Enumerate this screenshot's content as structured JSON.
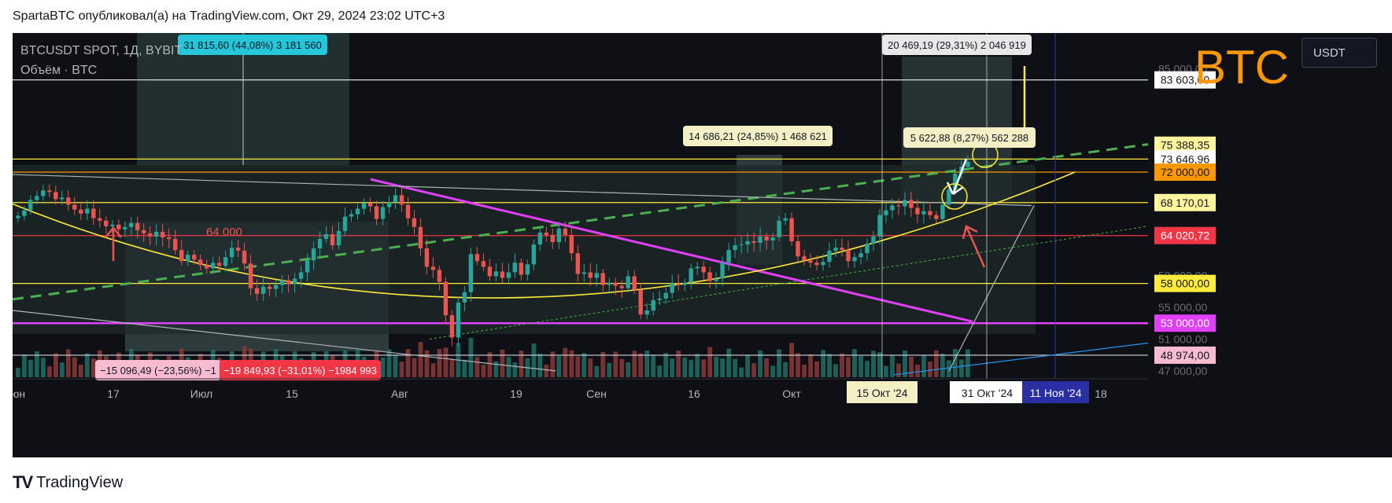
{
  "header": {
    "title": "SpartaBTC опубликовал(а) на TradingView.com, Окт 29, 2024 23:02 UTC+3"
  },
  "legend": {
    "symbol": "BTCUSDT SPOT, 1Д, BYBIT",
    "volume": "Объём · BTC"
  },
  "toolbar": {
    "currency": "USDT"
  },
  "brand": {
    "ticker": "BTC"
  },
  "footer": {
    "logo_text": "TradingView"
  },
  "colors": {
    "bg": "#0f1016",
    "up": "#26a69a",
    "down": "#ef5350",
    "magenta": "#e040fb",
    "green_dashed": "#4caf50",
    "yellow": "#ffeb3b",
    "orange": "#ff9800"
  },
  "chart_data": {
    "type": "candlestick",
    "ylim": [
      46000,
      89500
    ],
    "price_ticks": [
      "85 000,00",
      "59 000,00",
      "55 000,00",
      "51 000,00",
      "47 000,00"
    ],
    "x_ticks": [
      "Июн",
      "17",
      "Июл",
      "15",
      "Авг",
      "19",
      "Сен",
      "16",
      "Окт",
      "18"
    ],
    "x_highlight_labels": [
      {
        "text": "15 Окт '24",
        "bg": "#f4efc4",
        "color": "#131722"
      },
      {
        "text": "31 Окт '24",
        "bg": "#ffffff",
        "color": "#131722"
      },
      {
        "text": "11 Ноя '24",
        "bg": "#2a2fa4",
        "color": "#ffffff"
      }
    ],
    "price_labels": [
      {
        "text": "83 603,00",
        "price": 83603,
        "bg": "#ffffff",
        "color": "#131722"
      },
      {
        "text": "75 388,35",
        "price": 75388.35,
        "bg": "#fff59d",
        "color": "#131722"
      },
      {
        "text": "73 646,96",
        "price": 73646.96,
        "bg": "#ffffff",
        "color": "#131722"
      },
      {
        "text": "72 000,00",
        "price": 72000,
        "bg": "#ff9800",
        "color": "#131722"
      },
      {
        "text": "68 170,01",
        "price": 68170.01,
        "bg": "#fff59d",
        "color": "#131722"
      },
      {
        "text": "64 020,72",
        "price": 64020.72,
        "bg": "#f23645",
        "color": "#ffffff"
      },
      {
        "text": "58 000,00",
        "price": 58000,
        "bg": "#ffeb3b",
        "color": "#131722"
      },
      {
        "text": "53 000,00",
        "price": 53000,
        "bg": "#e040fb",
        "color": "#ffffff"
      },
      {
        "text": "48 974,00",
        "price": 48974,
        "bg": "#f8bbd0",
        "color": "#131722"
      }
    ],
    "horizontal_levels": [
      {
        "price": 83603,
        "color": "#d1d4dc"
      },
      {
        "price": 73646.96,
        "color": "#ffeb3b"
      },
      {
        "price": 72000,
        "color": "#ff9800"
      },
      {
        "price": 68170.01,
        "color": "#ffeb3b"
      },
      {
        "price": 64020.72,
        "color": "#f23645"
      },
      {
        "price": 58000,
        "color": "#ffeb3b"
      },
      {
        "price": 53000,
        "color": "#e040fb"
      },
      {
        "price": 48974,
        "color": "#d1d4dc"
      }
    ],
    "measure_labels": [
      {
        "text": "31 815,60 (44,08%) 3 181 560",
        "bg": "#26c6da",
        "color": "#131722"
      },
      {
        "text": "20 469,19 (29,31%) 2 046 919",
        "bg": "#e8e8e8",
        "color": "#131722"
      },
      {
        "text": "14 686,21 (24,85%) 1 468 621",
        "bg": "#f4efc4",
        "color": "#131722"
      },
      {
        "text": "5 622,88 (8,27%) 562 288",
        "bg": "#f4efc4",
        "color": "#131722"
      },
      {
        "text": "−15 096,49 (−23,56%) −1",
        "bg": "#f8bbd0",
        "color": "#131722"
      },
      {
        "text": "−19 849,93 (−31,01%) −1984 993",
        "bg": "#f23645",
        "color": "#ffffff"
      }
    ],
    "annotation_text": "64 000",
    "closes": [
      66500,
      67200,
      68500,
      69000,
      69700,
      69500,
      68600,
      68800,
      67900,
      67300,
      66800,
      67400,
      66200,
      65900,
      65200,
      65400,
      64800,
      65100,
      65600,
      64700,
      64300,
      63900,
      64500,
      63800,
      63600,
      62200,
      60800,
      61600,
      61000,
      60300,
      59900,
      60600,
      60200,
      61300,
      62500,
      62100,
      60500,
      57400,
      56700,
      57600,
      57300,
      57800,
      58400,
      57900,
      58600,
      59400,
      60900,
      62400,
      63600,
      64200,
      62800,
      64600,
      66400,
      66700,
      67400,
      68100,
      67700,
      66100,
      67600,
      68200,
      69100,
      67900,
      66200,
      65100,
      62400,
      60100,
      59700,
      58200,
      54000,
      51200,
      55600,
      56900,
      61700,
      60800,
      60100,
      58900,
      59500,
      58700,
      59400,
      60600,
      59100,
      60400,
      62900,
      64400,
      64100,
      63200,
      64900,
      64100,
      61800,
      59200,
      59400,
      58700,
      59300,
      57800,
      58100,
      57700,
      57400,
      58900,
      57200,
      54100,
      54600,
      55900,
      56100,
      56800,
      58000,
      57800,
      58100,
      59900,
      60100,
      59400,
      58300,
      58600,
      60600,
      62200,
      62800,
      62900,
      63300,
      63100,
      63900,
      63400,
      63800,
      65900,
      66200,
      63300,
      61400,
      60900,
      60600,
      60300,
      60700,
      62100,
      62500,
      62200,
      60800,
      61300,
      61800,
      63000,
      63900,
      66600,
      67200,
      67800,
      67700,
      68500,
      67500,
      66700,
      67100,
      66600,
      66100,
      67900,
      69800,
      71800,
      72700,
      73300
    ]
  }
}
